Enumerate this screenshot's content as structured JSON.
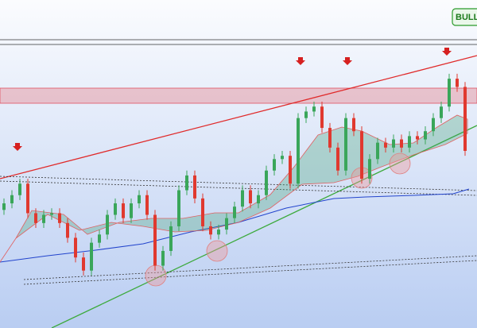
{
  "chart_data": {
    "type": "candlestick",
    "badge": "BULL",
    "up_color": "#3aa65a",
    "down_color": "#e0392f",
    "ylim": [
      0,
      100
    ],
    "open": [
      36,
      38,
      40.5,
      44,
      35,
      32,
      34.5,
      35,
      32,
      27.5,
      21.5,
      17.5,
      26,
      28.5,
      34.5,
      38,
      33.5,
      38,
      40.5,
      34.5,
      19,
      23.5,
      31,
      42,
      46.5,
      39.5,
      31,
      28.5,
      30,
      33.5,
      37,
      42,
      38,
      40.5,
      48,
      51.5,
      52.5,
      44,
      64,
      66,
      67.5,
      61,
      55,
      48,
      64,
      60,
      45.5,
      51.5,
      56.5,
      55,
      57.5,
      55,
      58.5,
      57.5,
      60,
      64,
      67.5,
      76,
      73.5
    ],
    "high": [
      39.5,
      42,
      45.5,
      45.5,
      36.5,
      36,
      36.5,
      36.5,
      33.5,
      29,
      23,
      27.5,
      30,
      36,
      39.5,
      39.5,
      39.5,
      42,
      42,
      36,
      25,
      32.5,
      43.5,
      48,
      48,
      41,
      32.5,
      31.5,
      35,
      38.5,
      43.5,
      43.5,
      42,
      49.5,
      53,
      54,
      54,
      65.5,
      67.5,
      69,
      69,
      62.5,
      56.5,
      65.5,
      65.5,
      61.5,
      53,
      58,
      58,
      59,
      59,
      60,
      60,
      61.5,
      65.5,
      69,
      77.5,
      77.5,
      75
    ],
    "low": [
      34.5,
      36.5,
      39,
      33.5,
      30.5,
      30.5,
      33,
      30.5,
      26,
      20,
      16,
      16,
      24.5,
      27,
      33,
      32,
      32,
      36.5,
      33,
      17.5,
      17.5,
      22,
      29.5,
      40.5,
      38,
      29.5,
      27,
      27,
      28.5,
      32,
      35.5,
      36.5,
      36.5,
      39,
      46.5,
      50,
      42.5,
      42.5,
      62.5,
      64.5,
      59.5,
      53.5,
      46.5,
      46.5,
      58.5,
      44,
      44,
      50,
      53.5,
      53.5,
      53.5,
      53.5,
      56,
      56,
      58.5,
      62.5,
      66,
      72,
      52.5
    ],
    "close": [
      38,
      40.5,
      44,
      35,
      32,
      34.5,
      35,
      32,
      27.5,
      21.5,
      17.5,
      26,
      28.5,
      34.5,
      38,
      33.5,
      38,
      40.5,
      34.5,
      19,
      23.5,
      31,
      42,
      46.5,
      39.5,
      31,
      28.5,
      30,
      33.5,
      37,
      42,
      38,
      40.5,
      48,
      51.5,
      52.5,
      44,
      64,
      66,
      67.5,
      61,
      55,
      48,
      64,
      60,
      45.5,
      51.5,
      56.5,
      55,
      57.5,
      55,
      58.5,
      57.5,
      60,
      64,
      67.5,
      76,
      73.5,
      54
    ]
  }
}
